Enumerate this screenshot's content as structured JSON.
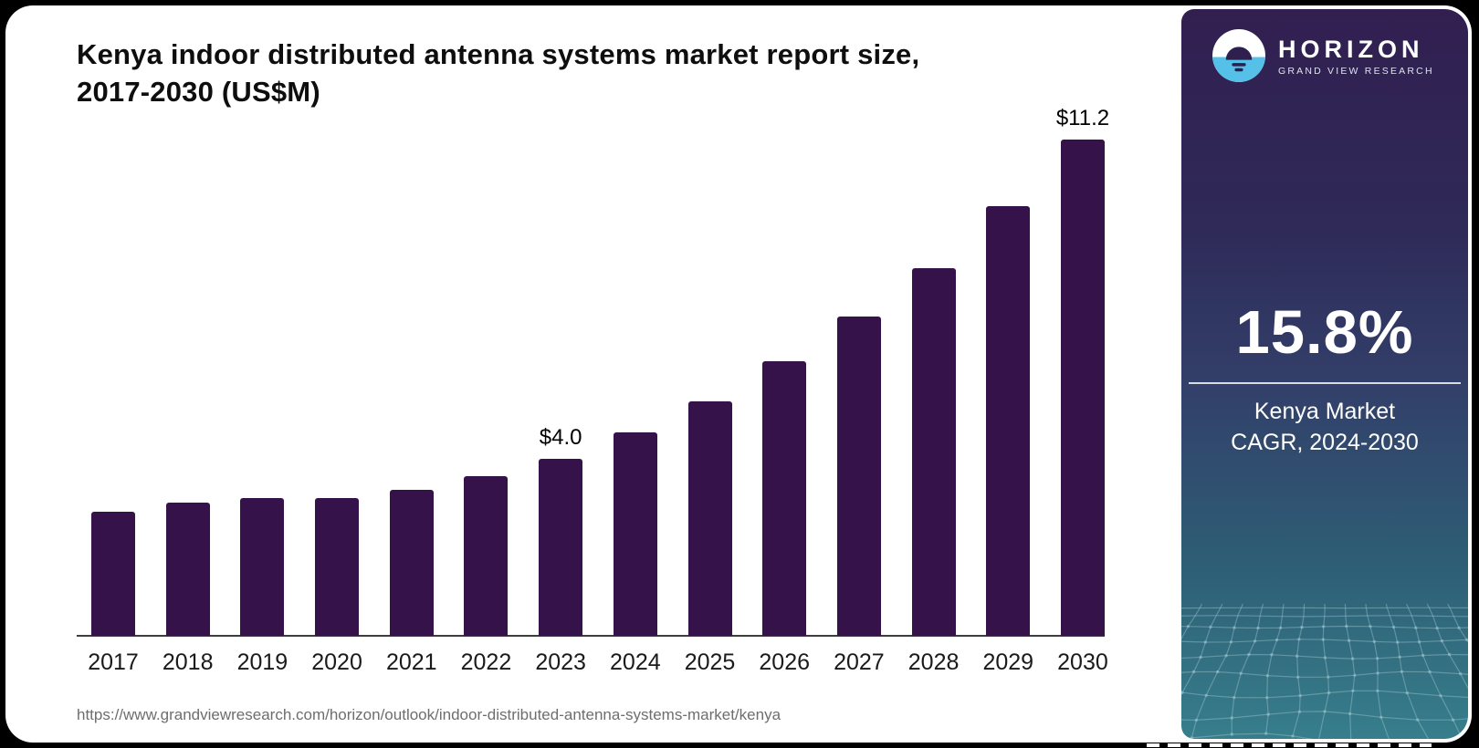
{
  "title": {
    "line1": "Kenya indoor distributed antenna systems market report size,",
    "line2": "2017-2030 (US$M)"
  },
  "source_url": "https://www.grandviewresearch.com/horizon/outlook/indoor-distributed-antenna-systems-market/kenya",
  "chart_data": {
    "type": "bar",
    "title": "Kenya indoor distributed antenna systems market report size, 2017-2030 (US$M)",
    "unit": "US$M",
    "categories": [
      "2017",
      "2018",
      "2019",
      "2020",
      "2021",
      "2022",
      "2023",
      "2024",
      "2025",
      "2026",
      "2027",
      "2028",
      "2029",
      "2030"
    ],
    "values": [
      2.8,
      3.0,
      3.1,
      3.1,
      3.3,
      3.6,
      4.0,
      4.6,
      5.3,
      6.2,
      7.2,
      8.3,
      9.7,
      11.2
    ],
    "annotations": [
      {
        "category": "2023",
        "text": "$4.0"
      },
      {
        "category": "2030",
        "text": "$11.2"
      }
    ],
    "xlabel": "",
    "ylabel": "",
    "ylim": [
      0,
      11.7
    ],
    "grid": false,
    "legend": false,
    "bar_color": "#36124B"
  },
  "sidebar": {
    "brand": {
      "name": "HORIZON",
      "subtitle": "GRAND VIEW RESEARCH",
      "icon": "horizon-sun-over-water-icon"
    },
    "stat": {
      "value": "15.8%",
      "label_line1": "Kenya Market",
      "label_line2": "CAGR, 2024-2030"
    },
    "colors": {
      "gradient_top": "#311F50",
      "gradient_bottom": "#377E8C",
      "logo_blue": "#55C1E9",
      "logo_navy": "#2E1F4E"
    }
  }
}
